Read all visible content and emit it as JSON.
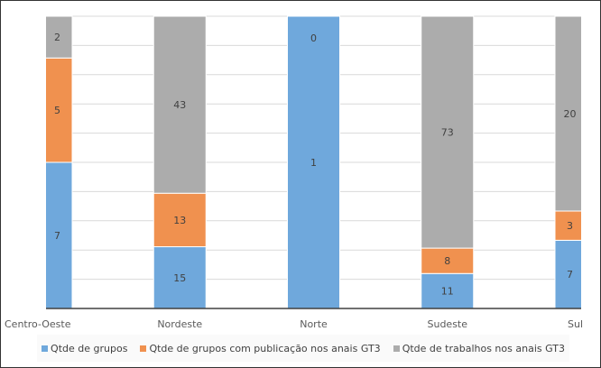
{
  "chart_data": {
    "type": "bar",
    "stacked": "percent",
    "categories": [
      "Centro-Oeste",
      "Nordeste",
      "Norte",
      "Sudeste",
      "Sul"
    ],
    "series": [
      {
        "name": "Qtde de grupos",
        "color": "#6fa8dc",
        "values": [
          7,
          15,
          1,
          11,
          7
        ]
      },
      {
        "name": "Qtde de grupos com publicação nos anais GT3",
        "color": "#f0914f",
        "values": [
          5,
          13,
          0,
          8,
          3
        ]
      },
      {
        "name": "Qtde de trabalhos nos anais GT3",
        "color": "#acacac",
        "values": [
          2,
          43,
          null,
          73,
          20
        ]
      }
    ],
    "ylim": [
      0,
      100
    ],
    "grid": true,
    "legend": "bottom"
  }
}
